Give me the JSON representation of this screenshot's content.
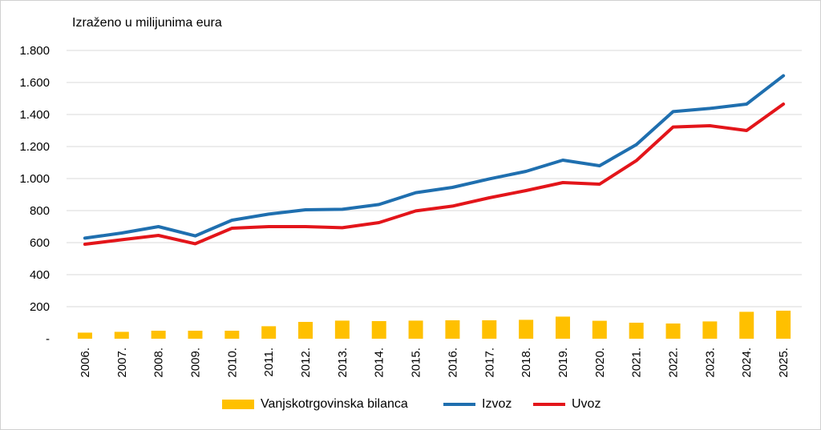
{
  "colors": {
    "bar": "#FFC000",
    "izvoz": "#1F6FAF",
    "uvoz": "#E3151A",
    "grid": "#d9d9d9"
  },
  "chart_data": {
    "type": "bar",
    "unit_label": "Izraženo u milijunima eura",
    "categories": [
      "2006.",
      "2007.",
      "2008.",
      "2009.",
      "2010.",
      "2011.",
      "2012.",
      "2013.",
      "2014.",
      "2015.",
      "2016.",
      "2017.",
      "2018.",
      "2019.",
      "2020.",
      "2021.",
      "2022.",
      "2023.",
      "2024.",
      "2025."
    ],
    "y_ticks": [
      "-",
      "200",
      "400",
      "600",
      "800",
      "1.000",
      "1.200",
      "1.400",
      "1.600",
      "1.800"
    ],
    "ylim": [
      0,
      1800
    ],
    "grid": true,
    "legend_position": "bottom",
    "series": [
      {
        "name": "Vanjskotrgovinska bilanca",
        "type": "bar",
        "values": [
          38,
          43,
          50,
          50,
          50,
          78,
          105,
          113,
          110,
          113,
          115,
          115,
          118,
          138,
          112,
          100,
          95,
          108,
          168,
          175
        ]
      },
      {
        "name": "Izvoz",
        "type": "line",
        "values": [
          628,
          660,
          700,
          642,
          740,
          778,
          805,
          808,
          838,
          912,
          945,
          998,
          1045,
          1115,
          1080,
          1212,
          1418,
          1438,
          1465,
          1642
        ]
      },
      {
        "name": "Uvoz",
        "type": "line",
        "values": [
          590,
          618,
          645,
          593,
          690,
          700,
          700,
          693,
          725,
          798,
          828,
          880,
          925,
          975,
          965,
          1112,
          1322,
          1330,
          1300,
          1465
        ]
      }
    ]
  }
}
